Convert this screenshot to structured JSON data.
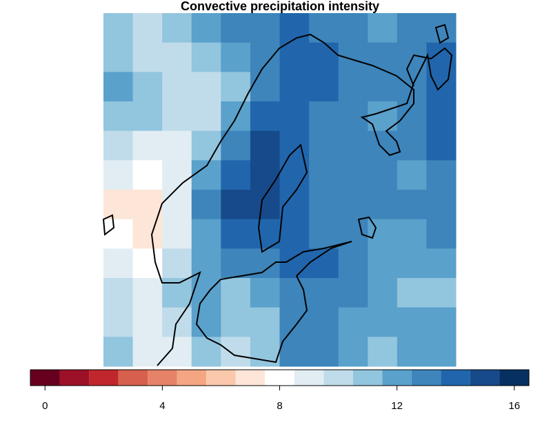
{
  "chart_data": {
    "type": "heatmap",
    "title": "Convective precipitation intensity",
    "z": [
      [
        11,
        10,
        11,
        12,
        13,
        13,
        14,
        13,
        13,
        12,
        13,
        13
      ],
      [
        11,
        10,
        10,
        11,
        12,
        13,
        14,
        14,
        13,
        13,
        13,
        14
      ],
      [
        12,
        11,
        10,
        10,
        11,
        13,
        14,
        14,
        13,
        13,
        13,
        14
      ],
      [
        11,
        11,
        10,
        10,
        12,
        14,
        14,
        13,
        13,
        12,
        13,
        14
      ],
      [
        10,
        9,
        9,
        11,
        13,
        15,
        14,
        13,
        13,
        13,
        13,
        14
      ],
      [
        9,
        8,
        9,
        12,
        14,
        15,
        14,
        13,
        13,
        13,
        12,
        13
      ],
      [
        7,
        7,
        9,
        13,
        15,
        15,
        14,
        13,
        13,
        13,
        13,
        13
      ],
      [
        8,
        7,
        9,
        12,
        14,
        14,
        14,
        13,
        13,
        12,
        12,
        13
      ],
      [
        9,
        8,
        10,
        12,
        13,
        13,
        14,
        14,
        13,
        12,
        12,
        12
      ],
      [
        10,
        9,
        11,
        12,
        11,
        12,
        13,
        13,
        13,
        12,
        11,
        11
      ],
      [
        10,
        9,
        10,
        12,
        11,
        11,
        13,
        13,
        12,
        12,
        12,
        12
      ],
      [
        11,
        9,
        9,
        11,
        10,
        11,
        13,
        13,
        12,
        11,
        12,
        12
      ]
    ],
    "colorbar": {
      "levels": [
        0,
        1,
        2,
        3,
        4,
        5,
        6,
        7,
        8,
        9,
        10,
        11,
        12,
        13,
        14,
        15,
        16
      ],
      "colors": [
        "#67001f",
        "#9c1127",
        "#c0272d",
        "#d6604d",
        "#e58268",
        "#f4a582",
        "#fbc8ac",
        "#fde5d8",
        "#ffffff",
        "#e1edf3",
        "#c0dcea",
        "#92c5de",
        "#5aa1cb",
        "#3d85bb",
        "#2166ac",
        "#174a8b",
        "#053061"
      ],
      "xlim": [
        -0.5,
        16.5
      ],
      "xticks": [
        0,
        4,
        8,
        12,
        16
      ]
    }
  }
}
